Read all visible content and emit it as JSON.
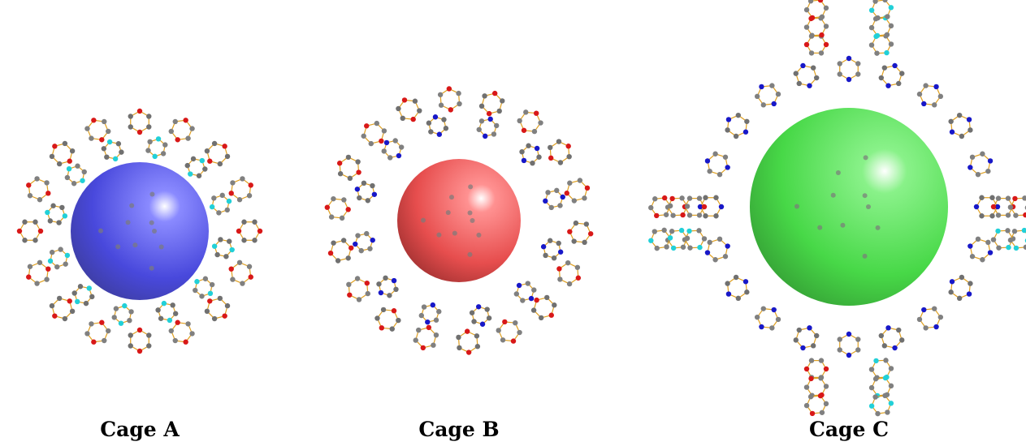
{
  "panels": [
    {
      "label": "Cage A"
    },
    {
      "label": "Cage B"
    },
    {
      "label": "Cage C"
    }
  ]
}
